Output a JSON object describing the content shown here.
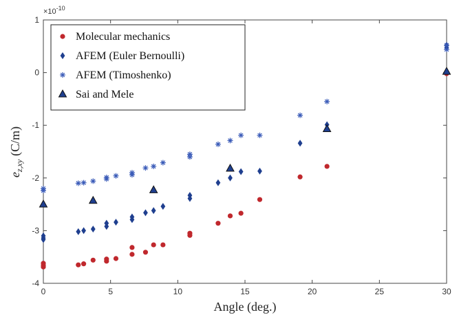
{
  "chart_data": {
    "type": "scatter",
    "xlabel": "Angle (deg.)",
    "ylabel": "e",
    "ylabel_sub": "z,xy",
    "ylabel_unit": "(C/m)",
    "y_multiplier": "×10",
    "y_multiplier_exp": "-10",
    "xlim": [
      0,
      30
    ],
    "ylim": [
      -4,
      1
    ],
    "xticks": [
      0,
      5,
      10,
      15,
      20,
      25,
      30
    ],
    "yticks": [
      -4,
      -3,
      -2,
      -1,
      0,
      1
    ],
    "xtick_labels": [
      "0",
      "5",
      "10",
      "15",
      "20",
      "25",
      "30"
    ],
    "ytick_labels": [
      "-4",
      "-3",
      "-2",
      "-1",
      "0",
      "1"
    ],
    "grid": false,
    "legend_position": "top-left",
    "series": [
      {
        "name": "Molecular mechanics",
        "marker": "circle",
        "color": "#c0282d",
        "points": [
          [
            0,
            -3.62
          ],
          [
            0,
            -3.66
          ],
          [
            0,
            -3.69
          ],
          [
            2.6,
            -3.65
          ],
          [
            3.0,
            -3.63
          ],
          [
            3.7,
            -3.56
          ],
          [
            4.7,
            -3.58
          ],
          [
            4.7,
            -3.54
          ],
          [
            5.4,
            -3.53
          ],
          [
            6.6,
            -3.45
          ],
          [
            6.6,
            -3.32
          ],
          [
            7.6,
            -3.41
          ],
          [
            8.2,
            -3.27
          ],
          [
            8.9,
            -3.27
          ],
          [
            10.9,
            -3.05
          ],
          [
            10.9,
            -3.09
          ],
          [
            13.0,
            -2.86
          ],
          [
            13.9,
            -2.72
          ],
          [
            14.7,
            -2.67
          ],
          [
            16.1,
            -2.41
          ],
          [
            19.1,
            -1.98
          ],
          [
            21.1,
            -1.78
          ],
          [
            30.0,
            -0.02
          ]
        ]
      },
      {
        "name": "AFEM (Euler Bernoulli)",
        "marker": "diamond",
        "color": "#1f3f8f",
        "points": [
          [
            0,
            -3.1
          ],
          [
            0,
            -3.14
          ],
          [
            0,
            -3.17
          ],
          [
            2.6,
            -3.02
          ],
          [
            3.0,
            -3.0
          ],
          [
            3.7,
            -2.97
          ],
          [
            4.7,
            -2.86
          ],
          [
            4.7,
            -2.92
          ],
          [
            5.4,
            -2.84
          ],
          [
            6.6,
            -2.74
          ],
          [
            6.6,
            -2.79
          ],
          [
            7.6,
            -2.66
          ],
          [
            8.2,
            -2.62
          ],
          [
            8.9,
            -2.54
          ],
          [
            10.9,
            -2.33
          ],
          [
            10.9,
            -2.39
          ],
          [
            13.0,
            -2.09
          ],
          [
            13.9,
            -2.0
          ],
          [
            14.7,
            -1.88
          ],
          [
            16.1,
            -1.87
          ],
          [
            19.1,
            -1.34
          ],
          [
            21.1,
            -0.99
          ],
          [
            30.0,
            0.47
          ],
          [
            30.0,
            0.52
          ]
        ]
      },
      {
        "name": "AFEM (Timoshenko)",
        "marker": "star",
        "color": "#3a5bb8",
        "points": [
          [
            0,
            -2.2
          ],
          [
            0,
            -2.24
          ],
          [
            2.6,
            -2.1
          ],
          [
            3.0,
            -2.09
          ],
          [
            3.7,
            -2.06
          ],
          [
            4.7,
            -1.99
          ],
          [
            4.7,
            -2.02
          ],
          [
            5.4,
            -1.96
          ],
          [
            6.6,
            -1.9
          ],
          [
            6.6,
            -1.94
          ],
          [
            7.6,
            -1.81
          ],
          [
            8.2,
            -1.78
          ],
          [
            8.9,
            -1.71
          ],
          [
            10.9,
            -1.55
          ],
          [
            10.9,
            -1.6
          ],
          [
            13.0,
            -1.36
          ],
          [
            13.9,
            -1.29
          ],
          [
            14.7,
            -1.19
          ],
          [
            16.1,
            -1.19
          ],
          [
            19.1,
            -0.81
          ],
          [
            21.1,
            -0.55
          ],
          [
            30.0,
            0.44
          ],
          [
            30.0,
            0.52
          ]
        ]
      },
      {
        "name": "Sai and Mele",
        "marker": "triangle",
        "color": "#1f3f8f",
        "points": [
          [
            0,
            -2.5
          ],
          [
            3.7,
            -2.43
          ],
          [
            8.2,
            -2.23
          ],
          [
            13.9,
            -1.82
          ],
          [
            21.1,
            -1.07
          ],
          [
            30.0,
            0.02
          ]
        ]
      }
    ]
  }
}
